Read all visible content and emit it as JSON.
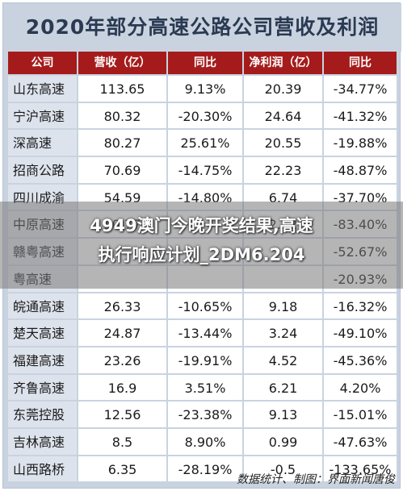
{
  "title": "2020年部分高速公路公司营收及利润",
  "headers": [
    "公司",
    "营收（亿）",
    "同比",
    "净利润（亿）",
    "同比"
  ],
  "rows": [
    [
      "山东高速",
      "113.65",
      "9.13%",
      "20.39",
      "-34.77%"
    ],
    [
      "宁沪高速",
      "80.32",
      "-20.30%",
      "24.64",
      "-41.32%"
    ],
    [
      "深高速",
      "80.27",
      "25.61%",
      "20.55",
      "-19.88%"
    ],
    [
      "招商公路",
      "70.69",
      "-14.75%",
      "22.23",
      "-48.87%"
    ],
    [
      "四川成渝",
      "54.59",
      "-14.80%",
      "6.74",
      "-37.70%"
    ],
    [
      "中原高速",
      "50.77",
      "",
      "2.42",
      "-83.40%"
    ],
    [
      "赣粤高速",
      "",
      "",
      "",
      "-52.67%"
    ],
    [
      "粤高速",
      "",
      "",
      "",
      "-20.93%"
    ],
    [
      "皖通高速",
      "26.33",
      "-10.65%",
      "9.18",
      "-16.32%"
    ],
    [
      "楚天高速",
      "24.87",
      "-13.44%",
      "3.24",
      "-49.10%"
    ],
    [
      "福建高速",
      "23.26",
      "-19.91%",
      "4.52",
      "-45.36%"
    ],
    [
      "齐鲁高速",
      "16.9",
      "3.51%",
      "6.21",
      "4.20%"
    ],
    [
      "东莞控股",
      "12.56",
      "-23.38%",
      "9.13",
      "-15.01%"
    ],
    [
      "吉林高速",
      "8.5",
      "8.90%",
      "0.99",
      "-47.63%"
    ],
    [
      "山西路桥",
      "6.35",
      "-28.19%",
      "-0.5",
      "-133.65%"
    ]
  ],
  "footer": "数据统计、制图：界面新闻唐俊",
  "overlay": {
    "line1": "4949澳门今晚开奖结果,高速",
    "line2": "执行响应计划_2DM6.204"
  },
  "colors": {
    "header_bg": "#a51b1b",
    "frame_bg": "#c9d3e0",
    "name_cell_bg": "#dde3ec"
  }
}
